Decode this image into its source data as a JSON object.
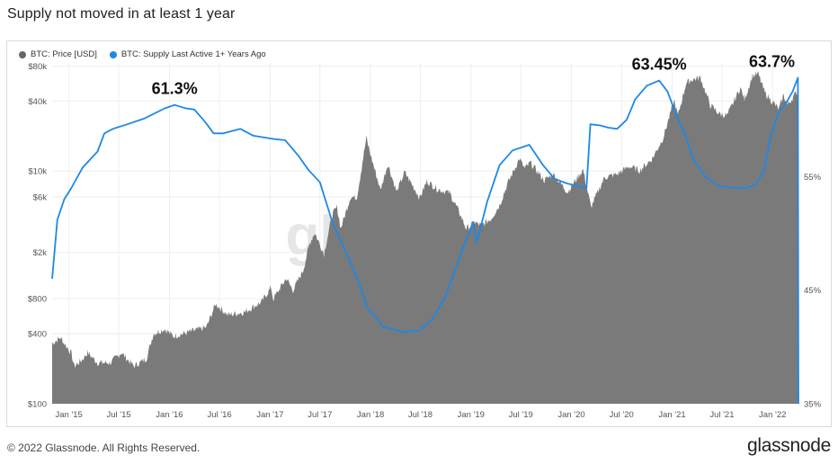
{
  "title": "Supply not moved in at least 1 year",
  "footer": {
    "copyright": "© 2022 Glassnode. All Rights Reserved.",
    "logo": "glassnode"
  },
  "watermark": "gl",
  "colors": {
    "price": "#7a7a7a",
    "price_legend": "#666666",
    "supply": "#1e88e5",
    "grid": "#eeeeee"
  },
  "chart_data": {
    "type": "area",
    "legend_placement": "top-left",
    "grid": true,
    "x_ticks": [
      "Jan '15",
      "Jul '15",
      "Jan '16",
      "Jul '16",
      "Jan '17",
      "Jul '17",
      "Jan '18",
      "Jul '18",
      "Jan '19",
      "Jul '19",
      "Jan '20",
      "Jul '20",
      "Jan '21",
      "Jul '21",
      "Jan '22"
    ],
    "x_range": [
      "2014-11-01",
      "2022-04-05"
    ],
    "y_left": {
      "scale": "log",
      "range": [
        100,
        85000
      ],
      "tick_values": [
        100,
        400,
        800,
        2000,
        6000,
        10000,
        40000,
        80000
      ],
      "tick_labels": [
        "$100",
        "$400",
        "$800",
        "$2k",
        "$6k",
        "$10k",
        "$40k",
        "$80k"
      ]
    },
    "y_right": {
      "scale": "linear",
      "range": [
        35,
        65
      ],
      "tick_values": [
        35,
        45,
        55
      ],
      "tick_labels": [
        "35%",
        "45%",
        "55%"
      ]
    },
    "series": [
      {
        "name": "BTC: Price [USD]",
        "axis": "left",
        "kind": "area",
        "points": [
          [
            "2014-11-01",
            330
          ],
          [
            "2014-12-01",
            370
          ],
          [
            "2015-01-10",
            270
          ],
          [
            "2015-01-20",
            210
          ],
          [
            "2015-02-15",
            235
          ],
          [
            "2015-03-10",
            275
          ],
          [
            "2015-04-15",
            225
          ],
          [
            "2015-06-01",
            225
          ],
          [
            "2015-07-10",
            275
          ],
          [
            "2015-08-25",
            210
          ],
          [
            "2015-10-10",
            245
          ],
          [
            "2015-11-04",
            400
          ],
          [
            "2015-12-15",
            440
          ],
          [
            "2016-01-15",
            380
          ],
          [
            "2016-03-15",
            415
          ],
          [
            "2016-05-15",
            455
          ],
          [
            "2016-06-17",
            720
          ],
          [
            "2016-08-01",
            580
          ],
          [
            "2016-10-01",
            615
          ],
          [
            "2016-12-01",
            750
          ],
          [
            "2017-01-05",
            1000
          ],
          [
            "2017-01-12",
            790
          ],
          [
            "2017-03-01",
            1200
          ],
          [
            "2017-03-25",
            940
          ],
          [
            "2017-05-01",
            1400
          ],
          [
            "2017-05-25",
            2400
          ],
          [
            "2017-06-12",
            2950
          ],
          [
            "2017-07-16",
            1950
          ],
          [
            "2017-08-15",
            4200
          ],
          [
            "2017-09-01",
            4900
          ],
          [
            "2017-09-15",
            3200
          ],
          [
            "2017-10-20",
            6000
          ],
          [
            "2017-11-12",
            5900
          ],
          [
            "2017-12-17",
            19300
          ],
          [
            "2018-01-01",
            13800
          ],
          [
            "2018-02-06",
            6900
          ],
          [
            "2018-03-05",
            11500
          ],
          [
            "2018-04-06",
            6600
          ],
          [
            "2018-05-05",
            9800
          ],
          [
            "2018-06-29",
            5900
          ],
          [
            "2018-07-25",
            8200
          ],
          [
            "2018-09-01",
            7000
          ],
          [
            "2018-10-15",
            6500
          ],
          [
            "2018-11-20",
            4400
          ],
          [
            "2018-12-15",
            3200
          ],
          [
            "2019-01-15",
            3600
          ],
          [
            "2019-02-08",
            3400
          ],
          [
            "2019-03-15",
            3900
          ],
          [
            "2019-04-15",
            5100
          ],
          [
            "2019-05-15",
            7900
          ],
          [
            "2019-06-26",
            12800
          ],
          [
            "2019-07-15",
            10500
          ],
          [
            "2019-08-05",
            11800
          ],
          [
            "2019-09-25",
            8300
          ],
          [
            "2019-10-26",
            9500
          ],
          [
            "2019-12-18",
            6600
          ],
          [
            "2020-02-12",
            10300
          ],
          [
            "2020-03-12",
            4900
          ],
          [
            "2020-04-30",
            8800
          ],
          [
            "2020-06-15",
            9400
          ],
          [
            "2020-07-28",
            11000
          ],
          [
            "2020-09-05",
            10100
          ],
          [
            "2020-10-21",
            12800
          ],
          [
            "2020-11-30",
            19400
          ],
          [
            "2021-01-08",
            40500
          ],
          [
            "2021-01-22",
            30000
          ],
          [
            "2021-02-21",
            57000
          ],
          [
            "2021-03-13",
            61000
          ],
          [
            "2021-04-14",
            63500
          ],
          [
            "2021-05-19",
            37000
          ],
          [
            "2021-06-22",
            31000
          ],
          [
            "2021-07-20",
            30000
          ],
          [
            "2021-09-06",
            52000
          ],
          [
            "2021-09-21",
            41000
          ],
          [
            "2021-10-20",
            66000
          ],
          [
            "2021-11-10",
            68500
          ],
          [
            "2021-12-04",
            47000
          ],
          [
            "2022-01-24",
            34000
          ],
          [
            "2022-02-10",
            45000
          ],
          [
            "2022-02-24",
            37000
          ],
          [
            "2022-03-29",
            47500
          ],
          [
            "2022-04-04",
            46000
          ]
        ]
      },
      {
        "name": "BTC: Supply Last Active 1+ Years Ago",
        "axis": "right",
        "kind": "line",
        "points": [
          [
            "2014-11-01",
            46.0
          ],
          [
            "2014-11-20",
            51.2
          ],
          [
            "2014-12-15",
            53.0
          ],
          [
            "2015-01-10",
            54.0
          ],
          [
            "2015-02-20",
            55.8
          ],
          [
            "2015-04-15",
            57.2
          ],
          [
            "2015-05-10",
            58.8
          ],
          [
            "2015-06-10",
            59.2
          ],
          [
            "2015-08-01",
            59.6
          ],
          [
            "2015-10-01",
            60.1
          ],
          [
            "2015-12-15",
            61.0
          ],
          [
            "2016-01-20",
            61.3
          ],
          [
            "2016-03-01",
            61.0
          ],
          [
            "2016-04-01",
            60.9
          ],
          [
            "2016-05-10",
            59.8
          ],
          [
            "2016-06-10",
            58.8
          ],
          [
            "2016-07-15",
            58.8
          ],
          [
            "2016-09-15",
            59.2
          ],
          [
            "2016-11-01",
            58.6
          ],
          [
            "2017-01-15",
            58.3
          ],
          [
            "2017-02-25",
            58.2
          ],
          [
            "2017-04-15",
            56.8
          ],
          [
            "2017-05-20",
            55.6
          ],
          [
            "2017-07-01",
            54.5
          ],
          [
            "2017-08-15",
            51.0
          ],
          [
            "2017-10-01",
            48.5
          ],
          [
            "2017-11-15",
            46.0
          ],
          [
            "2017-12-20",
            43.5
          ],
          [
            "2018-02-15",
            41.8
          ],
          [
            "2018-05-01",
            41.3
          ],
          [
            "2018-07-01",
            41.5
          ],
          [
            "2018-08-15",
            42.5
          ],
          [
            "2018-10-01",
            44.5
          ],
          [
            "2018-11-15",
            47.5
          ],
          [
            "2018-12-15",
            49.5
          ],
          [
            "2019-01-10",
            51.0
          ],
          [
            "2019-01-22",
            49.2
          ],
          [
            "2019-03-01",
            52.8
          ],
          [
            "2019-04-15",
            56.0
          ],
          [
            "2019-06-01",
            57.3
          ],
          [
            "2019-08-01",
            57.8
          ],
          [
            "2019-09-20",
            56.0
          ],
          [
            "2019-11-01",
            54.8
          ],
          [
            "2019-12-15",
            54.4
          ],
          [
            "2020-02-01",
            54.1
          ],
          [
            "2020-02-25",
            54.0
          ],
          [
            "2020-03-10",
            59.6
          ],
          [
            "2020-04-15",
            59.5
          ],
          [
            "2020-05-15",
            59.3
          ],
          [
            "2020-06-15",
            59.2
          ],
          [
            "2020-07-20",
            60.0
          ],
          [
            "2020-08-20",
            61.8
          ],
          [
            "2020-10-01",
            63.0
          ],
          [
            "2020-11-15",
            63.45
          ],
          [
            "2020-12-15",
            62.5
          ],
          [
            "2021-01-15",
            60.5
          ],
          [
            "2021-02-20",
            58.5
          ],
          [
            "2021-03-20",
            56.5
          ],
          [
            "2021-05-01",
            55.0
          ],
          [
            "2021-06-15",
            54.2
          ],
          [
            "2021-08-15",
            54.0
          ],
          [
            "2021-10-01",
            54.0
          ],
          [
            "2021-11-01",
            54.3
          ],
          [
            "2021-12-01",
            55.5
          ],
          [
            "2021-12-25",
            58.5
          ],
          [
            "2022-01-20",
            60.5
          ],
          [
            "2022-02-20",
            61.5
          ],
          [
            "2022-03-15",
            62.5
          ],
          [
            "2022-04-03",
            63.7
          ],
          [
            "2022-04-05",
            35.0
          ]
        ]
      }
    ],
    "annotations": [
      {
        "text": "61.3%",
        "x": "2016-01-20",
        "y": 61.3,
        "axis": "right"
      },
      {
        "text": "63.45%",
        "x": "2020-11-15",
        "y": 63.45,
        "axis": "right"
      },
      {
        "text": "63.7%",
        "x": "2022-04-03",
        "y": 63.7,
        "axis": "right"
      }
    ]
  }
}
